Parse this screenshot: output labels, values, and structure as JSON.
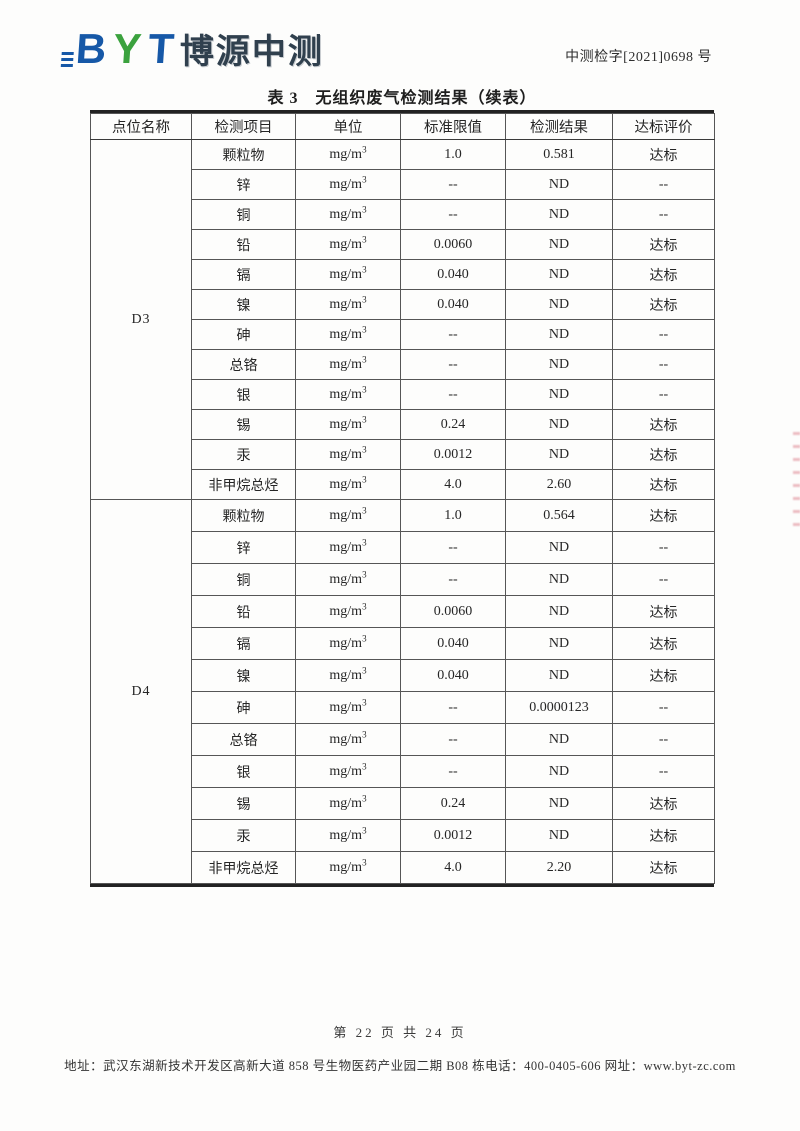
{
  "header": {
    "logo_letters": {
      "b": "B",
      "y": "Y",
      "t": "T"
    },
    "logo_text": "博源中测",
    "doc_number": "中测检字[2021]0698 号"
  },
  "table": {
    "title": "表 3　无组织废气检测结果（续表）",
    "columns": [
      "点位名称",
      "检测项目",
      "单位",
      "标准限值",
      "检测结果",
      "达标评价"
    ],
    "unit_base": "mg/m",
    "unit_sup": "3",
    "sections": [
      {
        "point": "D3",
        "rows": [
          {
            "item": "颗粒物",
            "limit": "1.0",
            "result": "0.581",
            "eval": "达标"
          },
          {
            "item": "锌",
            "limit": "--",
            "result": "ND",
            "eval": "--"
          },
          {
            "item": "铜",
            "limit": "--",
            "result": "ND",
            "eval": "--"
          },
          {
            "item": "铅",
            "limit": "0.0060",
            "result": "ND",
            "eval": "达标"
          },
          {
            "item": "镉",
            "limit": "0.040",
            "result": "ND",
            "eval": "达标"
          },
          {
            "item": "镍",
            "limit": "0.040",
            "result": "ND",
            "eval": "达标"
          },
          {
            "item": "砷",
            "limit": "--",
            "result": "ND",
            "eval": "--"
          },
          {
            "item": "总铬",
            "limit": "--",
            "result": "ND",
            "eval": "--"
          },
          {
            "item": "银",
            "limit": "--",
            "result": "ND",
            "eval": "--"
          },
          {
            "item": "锡",
            "limit": "0.24",
            "result": "ND",
            "eval": "达标"
          },
          {
            "item": "汞",
            "limit": "0.0012",
            "result": "ND",
            "eval": "达标"
          },
          {
            "item": "非甲烷总烃",
            "limit": "4.0",
            "result": "2.60",
            "eval": "达标"
          }
        ]
      },
      {
        "point": "D4",
        "rows": [
          {
            "item": "颗粒物",
            "limit": "1.0",
            "result": "0.564",
            "eval": "达标"
          },
          {
            "item": "锌",
            "limit": "--",
            "result": "ND",
            "eval": "--"
          },
          {
            "item": "铜",
            "limit": "--",
            "result": "ND",
            "eval": "--"
          },
          {
            "item": "铅",
            "limit": "0.0060",
            "result": "ND",
            "eval": "达标"
          },
          {
            "item": "镉",
            "limit": "0.040",
            "result": "ND",
            "eval": "达标"
          },
          {
            "item": "镍",
            "limit": "0.040",
            "result": "ND",
            "eval": "达标"
          },
          {
            "item": "砷",
            "limit": "--",
            "result": "0.0000123",
            "eval": "--"
          },
          {
            "item": "总铬",
            "limit": "--",
            "result": "ND",
            "eval": "--"
          },
          {
            "item": "银",
            "limit": "--",
            "result": "ND",
            "eval": "--"
          },
          {
            "item": "锡",
            "limit": "0.24",
            "result": "ND",
            "eval": "达标"
          },
          {
            "item": "汞",
            "limit": "0.0012",
            "result": "ND",
            "eval": "达标"
          },
          {
            "item": "非甲烷总烃",
            "limit": "4.0",
            "result": "2.20",
            "eval": "达标"
          }
        ]
      }
    ]
  },
  "footer": {
    "page_info": "第 22 页 共 24 页",
    "address_line": "地址：武汉东湖新技术开发区高新大道 858 号生物医药产业园二期 B08 栋电话：400-0405-606 网址：www.byt-zc.com"
  },
  "colors": {
    "logo_blue": "#1658a7",
    "logo_green": "#3ba23e",
    "logo_cjk": "#30404e",
    "seal_red": "#c4283c"
  }
}
